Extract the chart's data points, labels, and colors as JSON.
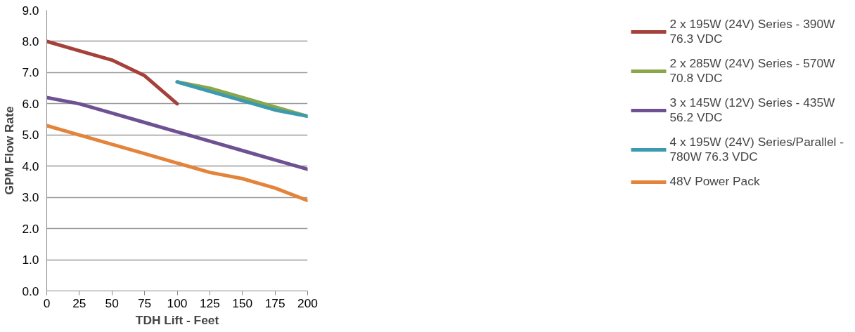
{
  "chart_data": {
    "type": "line",
    "xlabel": "TDH Lift - Feet",
    "ylabel": "GPM Flow Rate",
    "xlim": [
      0,
      200
    ],
    "xticks": [
      0,
      25,
      50,
      75,
      100,
      125,
      150,
      175,
      200
    ],
    "ylim": [
      0,
      9
    ],
    "yticks": [
      {
        "value": 0,
        "label": "0.0"
      },
      {
        "value": 1,
        "label": "1.0"
      },
      {
        "value": 2,
        "label": "2.0"
      },
      {
        "value": 3,
        "label": "3.0"
      },
      {
        "value": 4,
        "label": "4.0"
      },
      {
        "value": 5,
        "label": "5.0"
      },
      {
        "value": 6,
        "label": "6.0"
      },
      {
        "value": 7,
        "label": "7.0"
      },
      {
        "value": 8,
        "label": "8.0"
      },
      {
        "value": 9,
        "label": "9.0"
      }
    ],
    "grid": "y",
    "legend": "right",
    "marker": "none",
    "line_style": "solid",
    "series": [
      {
        "name": "2 x 195W (24V) Series - 390W 76.3 VDC",
        "color": "#a5403b",
        "x": [
          0,
          25,
          50,
          75,
          100
        ],
        "values": [
          8.0,
          7.7,
          7.4,
          6.9,
          6.0
        ]
      },
      {
        "name": "2 x 285W (24V) Series - 570W 70.8 VDC",
        "color": "#8aa64a",
        "x": [
          100,
          125,
          150,
          175,
          200
        ],
        "values": [
          6.7,
          6.5,
          6.2,
          5.9,
          5.6
        ]
      },
      {
        "name": "3 x 145W (12V) Series - 435W 56.2 VDC",
        "color": "#6e5192",
        "x": [
          0,
          25,
          50,
          75,
          100,
          125,
          150,
          175,
          200
        ],
        "values": [
          6.2,
          6.0,
          5.7,
          5.4,
          5.1,
          4.8,
          4.5,
          4.2,
          3.9
        ]
      },
      {
        "name": "4 x 195W (24V) Series/Parallel - 780W 76.3 VDC",
        "color": "#3c9ab0",
        "x": [
          100,
          125,
          150,
          175,
          200
        ],
        "values": [
          6.7,
          6.4,
          6.1,
          5.8,
          5.6
        ]
      },
      {
        "name": "48V Power Pack",
        "color": "#e3843a",
        "x": [
          0,
          25,
          50,
          75,
          100,
          125,
          150,
          175,
          200
        ],
        "values": [
          5.3,
          5.0,
          4.7,
          4.4,
          4.1,
          3.8,
          3.6,
          3.3,
          2.9
        ]
      }
    ]
  }
}
